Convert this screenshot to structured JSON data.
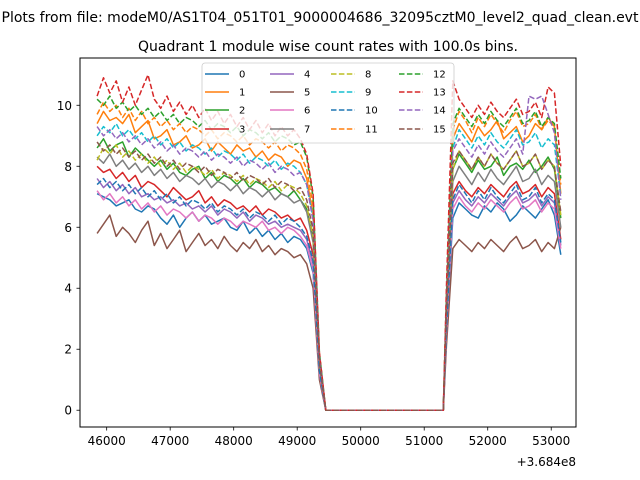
{
  "chart_data": {
    "type": "line",
    "suptitle": "Plots from file: modeM0/AS1T04_051T01_9000004686_32095cztM0_level2_quad_clean.evt",
    "title": "Quadrant 1 module wise count rates with 100.0s bins.",
    "xlabel": "",
    "ylabel": "",
    "x_offset_label": "+3.684e8",
    "x_offset": 368400000,
    "xlim": [
      45580,
      53390
    ],
    "ylim": [
      -0.55,
      11.55
    ],
    "xticks": [
      46000,
      47000,
      48000,
      49000,
      50000,
      51000,
      52000,
      53000
    ],
    "xtick_labels": [
      "46000",
      "47000",
      "48000",
      "49000",
      "50000",
      "51000",
      "52000",
      "53000"
    ],
    "yticks": [
      0,
      2,
      4,
      6,
      8,
      10
    ],
    "ytick_labels": [
      "0",
      "2",
      "4",
      "6",
      "8",
      "10"
    ],
    "legend_position": "upper center",
    "x": [
      45850,
      45950,
      46050,
      46150,
      46250,
      46350,
      46450,
      46550,
      46650,
      46750,
      46850,
      46950,
      47050,
      47150,
      47250,
      47350,
      47450,
      47550,
      47650,
      47750,
      47850,
      47950,
      48050,
      48150,
      48250,
      48350,
      48450,
      48550,
      48650,
      48750,
      48850,
      48950,
      49050,
      49150,
      49250,
      49350,
      49450,
      49500,
      50400,
      51300,
      51350,
      51450,
      51550,
      51650,
      51750,
      51850,
      51950,
      52050,
      52150,
      52250,
      52350,
      52450,
      52550,
      52650,
      52750,
      52850,
      52950,
      53050,
      53150
    ],
    "series": [
      {
        "name": "0",
        "color": "#1f77b4",
        "dash": "solid",
        "values": [
          7.1,
          7.0,
          6.9,
          6.7,
          6.8,
          6.9,
          6.6,
          6.5,
          6.7,
          6.6,
          6.3,
          6.1,
          6.4,
          6.0,
          6.3,
          6.5,
          6.2,
          6.4,
          6.1,
          6.2,
          6.3,
          6.0,
          5.9,
          6.2,
          5.8,
          6.0,
          5.7,
          5.9,
          5.6,
          5.8,
          5.5,
          5.7,
          5.6,
          5.3,
          4.5,
          1.2,
          0.0,
          0.0,
          0.0,
          0.0,
          2.5,
          6.3,
          6.8,
          6.6,
          6.4,
          6.3,
          6.7,
          6.5,
          6.8,
          6.6,
          6.2,
          6.4,
          6.7,
          6.5,
          6.3,
          6.6,
          6.9,
          6.4,
          5.1
        ]
      },
      {
        "name": "1",
        "color": "#ff7f0e",
        "dash": "solid",
        "values": [
          9.4,
          9.8,
          9.5,
          9.6,
          9.4,
          9.7,
          9.1,
          9.3,
          9.5,
          8.9,
          9.0,
          9.2,
          8.7,
          8.8,
          9.0,
          8.6,
          8.7,
          8.9,
          8.5,
          8.8,
          8.6,
          8.4,
          8.7,
          8.5,
          8.6,
          8.3,
          8.5,
          8.2,
          8.4,
          8.3,
          8.0,
          8.2,
          8.1,
          7.6,
          6.4,
          1.8,
          0.0,
          0.0,
          0.0,
          0.0,
          3.5,
          8.9,
          9.4,
          9.1,
          8.8,
          9.3,
          9.0,
          9.2,
          9.5,
          8.9,
          9.1,
          9.3,
          8.8,
          9.0,
          9.4,
          9.2,
          9.6,
          9.3,
          7.1
        ]
      },
      {
        "name": "2",
        "color": "#2ca02c",
        "dash": "solid",
        "values": [
          8.6,
          8.9,
          8.5,
          8.7,
          8.8,
          8.3,
          8.6,
          8.4,
          8.2,
          8.0,
          8.2,
          7.9,
          8.1,
          7.8,
          7.7,
          7.9,
          8.0,
          7.6,
          7.8,
          7.5,
          7.7,
          7.6,
          7.4,
          7.6,
          7.3,
          7.5,
          7.4,
          7.2,
          7.3,
          7.1,
          7.0,
          7.2,
          6.9,
          6.6,
          5.6,
          1.5,
          0.0,
          0.0,
          0.0,
          0.0,
          3.0,
          7.9,
          8.4,
          8.1,
          7.8,
          8.2,
          7.9,
          8.0,
          8.3,
          7.7,
          8.0,
          8.1,
          7.9,
          8.2,
          7.8,
          8.0,
          8.3,
          7.9,
          6.3
        ]
      },
      {
        "name": "3",
        "color": "#d62728",
        "dash": "solid",
        "values": [
          8.0,
          7.8,
          7.9,
          7.6,
          7.8,
          7.5,
          7.7,
          7.3,
          7.5,
          7.4,
          7.2,
          7.0,
          7.3,
          7.1,
          6.9,
          7.0,
          7.2,
          6.8,
          7.0,
          6.7,
          6.9,
          6.8,
          6.6,
          6.7,
          6.5,
          6.7,
          6.4,
          6.6,
          6.5,
          6.3,
          6.4,
          6.2,
          6.3,
          5.9,
          5.1,
          1.3,
          0.0,
          0.0,
          0.0,
          0.0,
          2.7,
          7.1,
          7.5,
          7.2,
          7.0,
          7.3,
          7.1,
          7.4,
          7.2,
          7.0,
          7.3,
          7.5,
          7.1,
          7.2,
          7.4,
          7.0,
          7.3,
          7.1,
          5.6
        ]
      },
      {
        "name": "4",
        "color": "#9467bd",
        "dash": "solid",
        "values": [
          7.6,
          7.3,
          7.5,
          7.2,
          7.4,
          7.1,
          7.3,
          7.0,
          7.1,
          6.9,
          7.0,
          6.8,
          6.9,
          6.7,
          6.8,
          6.6,
          6.7,
          6.5,
          6.7,
          6.4,
          6.6,
          6.5,
          6.3,
          6.5,
          6.2,
          6.4,
          6.3,
          6.1,
          6.2,
          6.0,
          6.1,
          6.0,
          5.9,
          5.6,
          4.8,
          1.2,
          0.0,
          0.0,
          0.0,
          0.0,
          2.6,
          6.8,
          7.2,
          6.9,
          6.7,
          7.0,
          6.8,
          7.1,
          6.9,
          6.7,
          7.0,
          7.2,
          6.8,
          6.9,
          7.1,
          6.7,
          7.0,
          6.8,
          5.4
        ]
      },
      {
        "name": "5",
        "color": "#8c564b",
        "dash": "solid",
        "values": [
          5.8,
          6.1,
          6.4,
          5.7,
          6.0,
          5.8,
          5.5,
          5.9,
          6.2,
          5.4,
          5.8,
          5.3,
          5.6,
          5.9,
          5.2,
          5.5,
          5.8,
          5.4,
          5.6,
          5.3,
          5.7,
          5.4,
          5.2,
          5.5,
          5.3,
          5.6,
          5.2,
          5.4,
          5.1,
          5.3,
          5.2,
          5.0,
          5.1,
          4.8,
          4.0,
          1.0,
          0.0,
          0.0,
          0.0,
          0.0,
          2.1,
          5.3,
          5.6,
          5.4,
          5.2,
          5.5,
          5.3,
          5.6,
          5.4,
          5.2,
          5.5,
          5.7,
          5.3,
          5.4,
          5.6,
          5.2,
          5.5,
          5.3,
          6.0
        ]
      },
      {
        "name": "6",
        "color": "#e377c2",
        "dash": "solid",
        "values": [
          7.2,
          6.9,
          7.1,
          6.8,
          7.0,
          6.7,
          6.9,
          6.6,
          6.8,
          6.5,
          6.7,
          6.4,
          6.6,
          6.5,
          6.3,
          6.5,
          6.2,
          6.4,
          6.3,
          6.1,
          6.3,
          6.2,
          6.0,
          6.2,
          6.1,
          6.0,
          6.2,
          5.9,
          6.0,
          5.8,
          6.0,
          5.9,
          5.7,
          5.4,
          4.6,
          1.2,
          0.0,
          0.0,
          0.0,
          0.0,
          2.5,
          6.6,
          7.0,
          6.7,
          6.5,
          6.8,
          6.6,
          6.9,
          6.7,
          6.5,
          6.8,
          7.0,
          6.6,
          6.7,
          6.9,
          6.5,
          6.8,
          6.6,
          5.3
        ]
      },
      {
        "name": "7",
        "color": "#7f7f7f",
        "dash": "solid",
        "values": [
          8.3,
          8.1,
          8.4,
          8.0,
          8.2,
          7.9,
          8.1,
          7.8,
          8.0,
          7.7,
          7.9,
          7.6,
          7.8,
          7.5,
          7.7,
          7.6,
          7.4,
          7.6,
          7.3,
          7.5,
          7.4,
          7.2,
          7.4,
          7.1,
          7.3,
          7.2,
          7.0,
          7.2,
          6.9,
          7.1,
          7.0,
          6.8,
          6.9,
          6.5,
          5.5,
          1.4,
          0.0,
          0.0,
          0.0,
          0.0,
          2.9,
          7.5,
          8.0,
          7.7,
          7.4,
          7.8,
          7.5,
          7.9,
          7.6,
          7.4,
          7.7,
          8.0,
          7.5,
          7.6,
          7.9,
          7.4,
          7.7,
          7.5,
          6.0
        ]
      },
      {
        "name": "8",
        "color": "#bcbd22",
        "dash": "dashed",
        "values": [
          8.2,
          8.6,
          8.4,
          8.7,
          8.3,
          8.5,
          8.2,
          8.4,
          8.1,
          8.3,
          8.0,
          8.2,
          7.9,
          8.1,
          7.8,
          8.0,
          7.9,
          7.7,
          7.9,
          7.6,
          7.8,
          7.7,
          7.5,
          7.7,
          7.4,
          7.6,
          7.5,
          7.3,
          7.5,
          7.2,
          7.4,
          7.3,
          7.1,
          6.7,
          5.7,
          1.5,
          0.0,
          0.0,
          0.0,
          0.0,
          3.1,
          7.9,
          8.5,
          8.2,
          7.9,
          8.3,
          8.0,
          8.4,
          8.1,
          7.9,
          8.2,
          8.5,
          8.0,
          8.1,
          8.4,
          7.9,
          8.2,
          8.0,
          6.4
        ]
      },
      {
        "name": "9",
        "color": "#17becf",
        "dash": "dashed",
        "values": [
          9.0,
          9.3,
          9.1,
          9.4,
          9.0,
          9.2,
          8.9,
          9.1,
          8.8,
          9.0,
          8.7,
          8.9,
          8.6,
          8.8,
          8.5,
          8.7,
          8.6,
          8.4,
          8.6,
          8.3,
          8.5,
          8.4,
          8.2,
          8.4,
          8.1,
          8.3,
          8.2,
          8.0,
          8.2,
          7.9,
          8.1,
          8.0,
          7.8,
          7.4,
          6.3,
          1.7,
          0.0,
          0.0,
          0.0,
          0.0,
          3.4,
          8.6,
          9.2,
          8.9,
          8.6,
          9.0,
          8.7,
          9.1,
          8.8,
          8.6,
          8.9,
          9.2,
          8.7,
          8.8,
          9.1,
          8.6,
          8.9,
          8.7,
          7.0
        ]
      },
      {
        "name": "10",
        "color": "#1f77b4",
        "dash": "dashed",
        "values": [
          7.4,
          7.6,
          7.3,
          7.5,
          7.2,
          7.4,
          7.1,
          7.3,
          7.0,
          7.2,
          6.9,
          7.1,
          6.8,
          7.0,
          6.7,
          6.9,
          6.8,
          6.6,
          6.8,
          6.5,
          6.7,
          6.6,
          6.4,
          6.6,
          6.3,
          6.5,
          6.4,
          6.2,
          6.4,
          6.1,
          6.3,
          6.2,
          6.0,
          5.7,
          4.9,
          1.3,
          0.0,
          0.0,
          0.0,
          0.0,
          2.6,
          6.9,
          7.4,
          7.1,
          6.8,
          7.2,
          6.9,
          7.3,
          7.0,
          6.8,
          7.1,
          7.4,
          6.9,
          7.0,
          7.3,
          6.8,
          7.1,
          6.9,
          5.5
        ]
      },
      {
        "name": "11",
        "color": "#ff7f0e",
        "dash": "dashed",
        "values": [
          9.7,
          10.1,
          9.8,
          10.0,
          9.6,
          9.9,
          9.5,
          9.8,
          9.4,
          9.6,
          9.3,
          9.5,
          9.2,
          9.4,
          9.1,
          9.3,
          9.2,
          9.0,
          9.2,
          8.9,
          9.1,
          9.0,
          8.8,
          9.0,
          8.7,
          8.9,
          8.8,
          8.6,
          8.8,
          8.5,
          8.7,
          8.6,
          8.4,
          7.9,
          6.7,
          1.8,
          0.0,
          0.0,
          0.0,
          0.0,
          3.6,
          9.2,
          9.8,
          9.5,
          9.1,
          9.6,
          9.3,
          9.7,
          9.4,
          9.1,
          9.5,
          9.8,
          9.3,
          9.4,
          9.7,
          9.2,
          9.5,
          9.3,
          7.4
        ]
      },
      {
        "name": "12",
        "color": "#2ca02c",
        "dash": "dashed",
        "values": [
          10.2,
          10.0,
          10.3,
          9.9,
          10.1,
          9.8,
          10.0,
          9.7,
          9.9,
          9.6,
          9.8,
          9.5,
          9.7,
          9.4,
          9.6,
          9.5,
          9.3,
          9.5,
          9.2,
          9.4,
          9.3,
          9.1,
          9.3,
          9.0,
          9.2,
          9.1,
          8.9,
          9.1,
          8.8,
          9.0,
          8.9,
          8.7,
          8.8,
          8.3,
          7.0,
          1.9,
          0.0,
          0.0,
          0.0,
          0.0,
          3.7,
          9.4,
          9.9,
          9.6,
          9.3,
          9.7,
          9.4,
          9.8,
          9.5,
          9.3,
          9.6,
          9.9,
          9.4,
          9.5,
          9.8,
          9.3,
          9.6,
          9.4,
          7.6
        ]
      },
      {
        "name": "13",
        "color": "#d62728",
        "dash": "dashed",
        "values": [
          10.3,
          10.9,
          10.4,
          10.8,
          10.1,
          10.6,
          10.0,
          10.5,
          11.0,
          10.2,
          9.9,
          10.3,
          9.8,
          10.1,
          9.7,
          10.0,
          9.6,
          9.9,
          9.5,
          9.8,
          9.4,
          9.7,
          9.3,
          9.6,
          9.2,
          9.5,
          9.1,
          9.4,
          9.0,
          9.3,
          9.0,
          9.2,
          8.9,
          8.4,
          7.1,
          1.9,
          0.0,
          0.0,
          0.0,
          0.0,
          4.0,
          10.8,
          10.2,
          9.9,
          9.6,
          10.0,
          9.7,
          10.1,
          9.8,
          9.6,
          9.9,
          10.2,
          9.7,
          9.8,
          10.1,
          9.6,
          10.6,
          10.4,
          8.0
        ]
      },
      {
        "name": "14",
        "color": "#9467bd",
        "dash": "dashed",
        "values": [
          9.3,
          9.0,
          9.2,
          8.9,
          9.1,
          8.8,
          9.0,
          8.7,
          8.9,
          8.6,
          8.8,
          8.5,
          8.7,
          8.4,
          8.6,
          8.5,
          8.3,
          8.5,
          8.2,
          8.4,
          8.3,
          8.1,
          8.3,
          8.0,
          8.2,
          8.1,
          7.9,
          8.1,
          7.8,
          8.0,
          7.9,
          7.7,
          7.8,
          7.4,
          6.2,
          1.7,
          0.0,
          0.0,
          0.0,
          0.0,
          3.3,
          8.5,
          8.9,
          8.6,
          8.3,
          8.7,
          8.4,
          8.8,
          8.5,
          8.3,
          8.6,
          8.9,
          8.4,
          10.3,
          10.2,
          10.3,
          9.7,
          9.1,
          6.9
        ]
      },
      {
        "name": "15",
        "color": "#8c564b",
        "dash": "dashed",
        "values": [
          8.8,
          8.5,
          8.7,
          8.4,
          8.6,
          8.3,
          8.5,
          8.2,
          8.4,
          8.1,
          8.3,
          8.0,
          8.2,
          7.9,
          8.1,
          8.0,
          7.8,
          8.0,
          7.7,
          7.9,
          7.8,
          7.6,
          7.8,
          7.5,
          7.7,
          7.6,
          7.4,
          7.6,
          7.3,
          7.5,
          7.4,
          7.2,
          7.3,
          6.9,
          5.9,
          1.6,
          0.0,
          0.0,
          0.0,
          0.0,
          3.2,
          8.1,
          8.5,
          8.2,
          7.9,
          8.3,
          8.0,
          8.4,
          8.1,
          7.9,
          8.2,
          8.5,
          8.0,
          8.1,
          8.4,
          7.9,
          8.2,
          8.0,
          6.5
        ]
      }
    ]
  }
}
